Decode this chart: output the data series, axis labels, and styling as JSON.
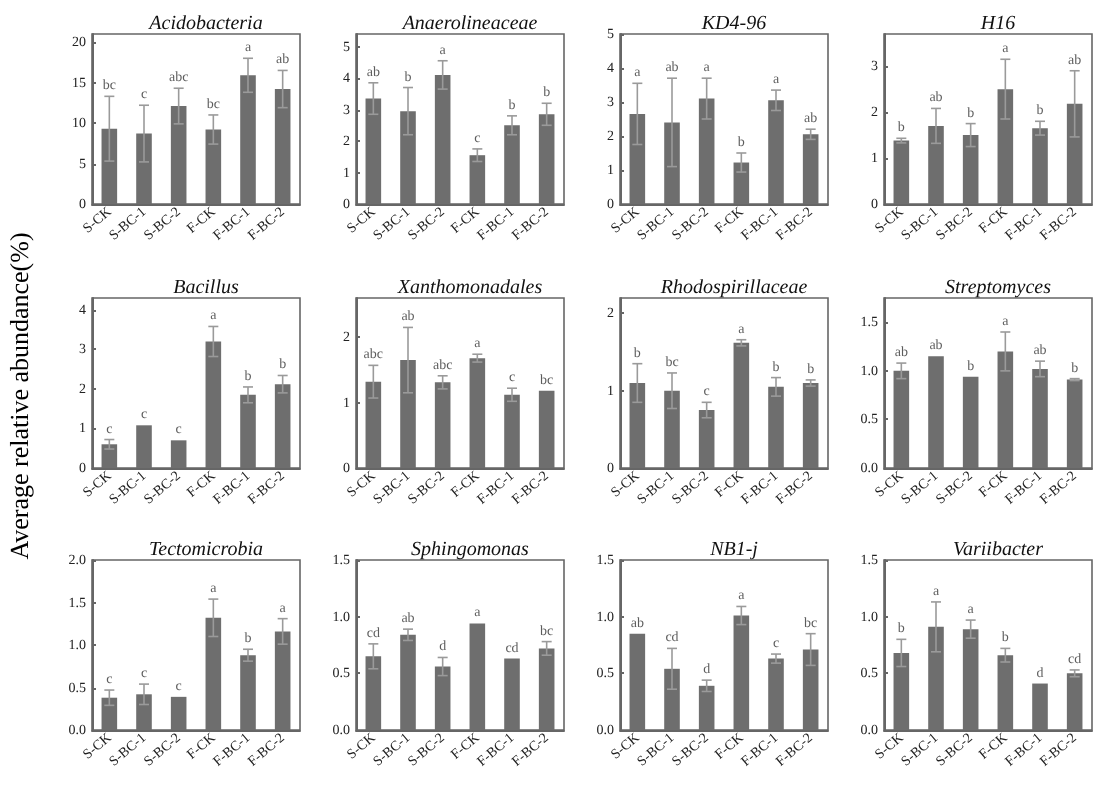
{
  "chart_data": [
    {
      "type": "bar",
      "title": "Acidobacteria",
      "categories": [
        "S-CK",
        "S-BC-1",
        "S-BC-2",
        "F-CK",
        "F-BC-1",
        "F-BC-2"
      ],
      "values": [
        9.3,
        8.7,
        12.1,
        9.2,
        15.9,
        14.2
      ],
      "errors": [
        4,
        3.5,
        2.2,
        1.8,
        2.1,
        2.3
      ],
      "color": "#6e6e6e",
      "ylim": [
        0,
        21
      ],
      "yticks": [
        0,
        5,
        10,
        15,
        20
      ],
      "annotations": [
        "bc",
        "c",
        "abc",
        "bc",
        "a",
        "ab"
      ]
    },
    {
      "type": "bar",
      "title": "Anaerolineaceae",
      "categories": [
        "S-CK",
        "S-BC-1",
        "S-BC-2",
        "F-CK",
        "F-BC-1",
        "F-BC-2"
      ],
      "values": [
        3.35,
        2.95,
        4.1,
        1.55,
        2.5,
        2.85
      ],
      "errors": [
        0.5,
        0.75,
        0.45,
        0.2,
        0.3,
        0.35
      ],
      "color": "#6e6e6e",
      "ylim": [
        0,
        5.4
      ],
      "yticks": [
        0,
        1,
        2,
        3,
        4,
        5
      ],
      "annotations": [
        "ab",
        "b",
        "a",
        "c",
        "b",
        "b"
      ]
    },
    {
      "type": "bar",
      "title": "KD4-96",
      "categories": [
        "S-CK",
        "S-BC-1",
        "S-BC-2",
        "F-CK",
        "F-BC-1",
        "F-BC-2"
      ],
      "values": [
        2.65,
        2.4,
        3.1,
        1.22,
        3.05,
        2.05
      ],
      "errors": [
        0.9,
        1.3,
        0.6,
        0.28,
        0.3,
        0.15
      ],
      "color": "#6e6e6e",
      "ylim": [
        0,
        5
      ],
      "yticks": [
        0,
        1,
        2,
        3,
        4,
        5
      ],
      "annotations": [
        "a",
        "ab",
        "a",
        "b",
        "a",
        "ab"
      ]
    },
    {
      "type": "bar",
      "title": "H16",
      "categories": [
        "S-CK",
        "S-BC-1",
        "S-BC-2",
        "F-CK",
        "F-BC-1",
        "F-BC-2"
      ],
      "values": [
        1.38,
        1.7,
        1.5,
        2.5,
        1.65,
        2.18
      ],
      "errors": [
        0.05,
        0.38,
        0.25,
        0.65,
        0.15,
        0.72
      ],
      "color": "#6e6e6e",
      "ylim": [
        0,
        3.7
      ],
      "yticks": [
        0,
        1,
        2,
        3
      ],
      "annotations": [
        "b",
        "ab",
        "b",
        "a",
        "b",
        "ab"
      ]
    },
    {
      "type": "bar",
      "title": "Bacillus",
      "ylabel": "Average relative abundance(%)",
      "categories": [
        "S-CK",
        "S-BC-1",
        "S-BC-2",
        "F-CK",
        "F-BC-1",
        "F-BC-2"
      ],
      "values": [
        0.6,
        1.08,
        0.7,
        3.2,
        1.85,
        2.12
      ],
      "errors": [
        0.12,
        null,
        null,
        0.38,
        0.2,
        0.22
      ],
      "color": "#6e6e6e",
      "ylim": [
        0,
        4.3
      ],
      "yticks": [
        0,
        1,
        2,
        3,
        4
      ],
      "annotations": [
        "c",
        "c",
        "c",
        "a",
        "b",
        "b"
      ]
    },
    {
      "type": "bar",
      "title": "Xanthomonadales",
      "categories": [
        "S-CK",
        "S-BC-1",
        "S-BC-2",
        "F-CK",
        "F-BC-1",
        "F-BC-2"
      ],
      "values": [
        1.32,
        1.65,
        1.31,
        1.68,
        1.12,
        1.18
      ],
      "errors": [
        0.25,
        0.5,
        0.1,
        0.06,
        0.1,
        null
      ],
      "color": "#6e6e6e",
      "ylim": [
        0,
        2.6
      ],
      "yticks": [
        0,
        1,
        2
      ],
      "annotations": [
        "abc",
        "ab",
        "abc",
        "a",
        "c",
        "bc"
      ]
    },
    {
      "type": "bar",
      "title": "Rhodospirillaceae",
      "categories": [
        "S-CK",
        "S-BC-1",
        "S-BC-2",
        "F-CK",
        "F-BC-1",
        "F-BC-2"
      ],
      "values": [
        1.1,
        1.0,
        0.75,
        1.62,
        1.05,
        1.1
      ],
      "errors": [
        0.25,
        0.23,
        0.1,
        0.04,
        0.12,
        0.04
      ],
      "color": "#6e6e6e",
      "ylim": [
        0,
        2.2
      ],
      "yticks": [
        0,
        1,
        2
      ],
      "annotations": [
        "b",
        "bc",
        "c",
        "a",
        "b",
        "b"
      ]
    },
    {
      "type": "bar",
      "title": "Streptomyces",
      "categories": [
        "S-CK",
        "S-BC-1",
        "S-BC-2",
        "F-CK",
        "F-BC-1",
        "F-BC-2"
      ],
      "values": [
        1.0,
        1.15,
        0.94,
        1.2,
        1.02,
        0.91
      ],
      "errors": [
        0.08,
        null,
        null,
        0.2,
        0.08,
        0.01
      ],
      "color": "#6e6e6e",
      "ylim": [
        0,
        1.75
      ],
      "yticks": [
        {
          "value": 0,
          "label": "0.0"
        },
        0.5,
        {
          "value": 1,
          "label": "1.0"
        },
        1.5
      ],
      "annotations": [
        "ab",
        "ab",
        "b",
        "a",
        "ab",
        "b"
      ]
    },
    {
      "type": "bar",
      "title": "Tectomicrobia",
      "categories": [
        "S-CK",
        "S-BC-1",
        "S-BC-2",
        "F-CK",
        "F-BC-1",
        "F-BC-2"
      ],
      "values": [
        0.38,
        0.42,
        0.39,
        1.32,
        0.88,
        1.16
      ],
      "errors": [
        0.09,
        0.12,
        null,
        0.22,
        0.07,
        0.15
      ],
      "color": "#6e6e6e",
      "ylim": [
        0,
        2
      ],
      "yticks": [
        {
          "value": 0,
          "label": "0.0"
        },
        0.5,
        {
          "value": 1,
          "label": "1.0"
        },
        1.5,
        {
          "value": 2,
          "label": "2.0"
        }
      ],
      "annotations": [
        "c",
        "c",
        "c",
        "a",
        "b",
        "a"
      ]
    },
    {
      "type": "bar",
      "title": "Sphingomonas",
      "categories": [
        "S-CK",
        "S-BC-1",
        "S-BC-2",
        "F-CK",
        "F-BC-1",
        "F-BC-2"
      ],
      "values": [
        0.65,
        0.84,
        0.56,
        0.94,
        0.63,
        0.72
      ],
      "errors": [
        0.11,
        0.05,
        0.08,
        null,
        null,
        0.06
      ],
      "color": "#6e6e6e",
      "ylim": [
        0,
        1.5
      ],
      "yticks": [
        {
          "value": 0,
          "label": "0.0"
        },
        0.5,
        {
          "value": 1,
          "label": "1.0"
        },
        1.5
      ],
      "annotations": [
        "cd",
        "ab",
        "d",
        "a",
        "cd",
        "bc"
      ]
    },
    {
      "type": "bar",
      "title": "NB1-j",
      "categories": [
        "S-CK",
        "S-BC-1",
        "S-BC-2",
        "F-CK",
        "F-BC-1",
        "F-BC-2"
      ],
      "values": [
        0.85,
        0.54,
        0.39,
        1.01,
        0.63,
        0.71
      ],
      "errors": [
        null,
        0.18,
        0.05,
        0.08,
        0.04,
        0.14
      ],
      "color": "#6e6e6e",
      "ylim": [
        0,
        1.5
      ],
      "yticks": [
        {
          "value": 0,
          "label": "0.0"
        },
        0.5,
        {
          "value": 1,
          "label": "1.0"
        },
        1.5
      ],
      "annotations": [
        "ab",
        "cd",
        "d",
        "a",
        "c",
        "bc"
      ]
    },
    {
      "type": "bar",
      "title": "Variibacter",
      "categories": [
        "S-CK",
        "S-BC-1",
        "S-BC-2",
        "F-CK",
        "F-BC-1",
        "F-BC-2"
      ],
      "values": [
        0.68,
        0.91,
        0.89,
        0.66,
        0.41,
        0.5
      ],
      "errors": [
        0.12,
        0.22,
        0.08,
        0.06,
        null,
        0.03
      ],
      "color": "#6e6e6e",
      "ylim": [
        0,
        1.5
      ],
      "yticks": [
        {
          "value": 0,
          "label": "0.0"
        },
        0.5,
        {
          "value": 1,
          "label": "1.0"
        },
        1.5
      ],
      "annotations": [
        "b",
        "a",
        "a",
        "b",
        "d",
        "cd"
      ]
    }
  ]
}
